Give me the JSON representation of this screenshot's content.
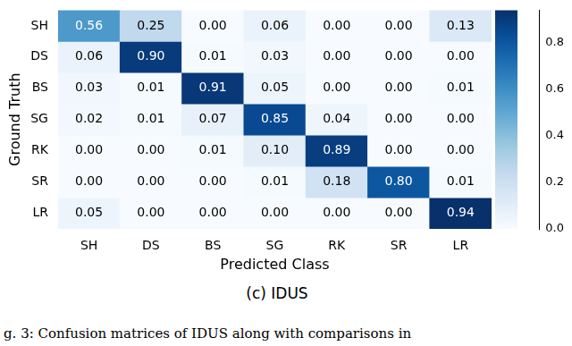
{
  "chart_data": {
    "type": "heatmap",
    "title": "(c) IDUS",
    "caption": "g. 3: Confusion matrices of IDUS along with comparisons in",
    "x_label": "Predicted Class",
    "y_label": "Ground Truth",
    "x_categories": [
      "SH",
      "DS",
      "BS",
      "SG",
      "RK",
      "SR",
      "LR"
    ],
    "y_categories": [
      "SH",
      "DS",
      "BS",
      "SG",
      "RK",
      "SR",
      "LR"
    ],
    "values": [
      [
        0.56,
        0.25,
        0,
        0.06,
        0,
        0,
        0.13
      ],
      [
        0.06,
        0.9,
        0.01,
        0.03,
        0,
        0,
        0
      ],
      [
        0.03,
        0.01,
        0.91,
        0.05,
        0,
        0,
        0.01
      ],
      [
        0.02,
        0.01,
        0.07,
        0.85,
        0.04,
        0,
        0
      ],
      [
        0,
        0,
        0.01,
        0.1,
        0.89,
        0,
        0
      ],
      [
        0,
        0,
        0,
        0.01,
        0.18,
        0.8,
        0.01
      ],
      [
        0.05,
        0,
        0,
        0,
        0,
        0,
        0.94
      ]
    ],
    "value_labels": [
      [
        "0.56",
        "0.25",
        "0.00",
        "0.06",
        "0.00",
        "0.00",
        "0.13"
      ],
      [
        "0.06",
        "0.90",
        "0.01",
        "0.03",
        "0.00",
        "0.00",
        "0.00"
      ],
      [
        "0.03",
        "0.01",
        "0.91",
        "0.05",
        "0.00",
        "0.00",
        "0.01"
      ],
      [
        "0.02",
        "0.01",
        "0.07",
        "0.85",
        "0.04",
        "0.00",
        "0.00"
      ],
      [
        "0.00",
        "0.00",
        "0.01",
        "0.10",
        "0.89",
        "0.00",
        "0.00"
      ],
      [
        "0.00",
        "0.00",
        "0.00",
        "0.01",
        "0.18",
        "0.80",
        "0.01"
      ],
      [
        "0.05",
        "0.00",
        "0.00",
        "0.00",
        "0.00",
        "0.00",
        "0.94"
      ]
    ],
    "data_labels": true,
    "colorbar": {
      "range": [
        0,
        0.94
      ],
      "ticks": [
        {
          "value": 0,
          "label": "0.0"
        },
        0.2,
        0.4,
        0.6,
        0.8
      ]
    }
  }
}
